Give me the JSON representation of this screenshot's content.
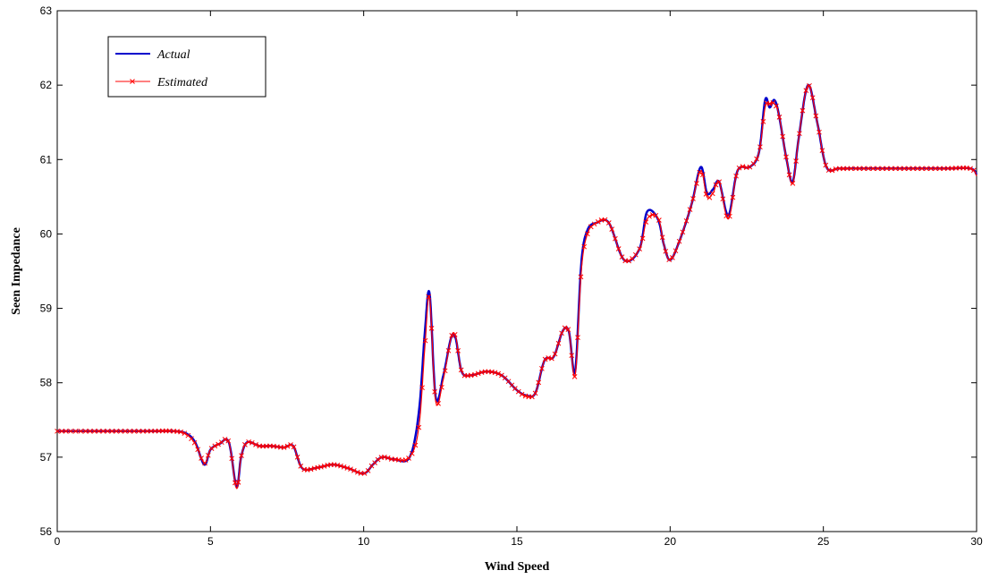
{
  "chart_data": {
    "type": "line",
    "title": "",
    "xlabel": "Wind Speed",
    "ylabel": "Seen Impedance",
    "xlim": [
      0,
      30
    ],
    "ylim": [
      56,
      63
    ],
    "xticks": [
      0,
      5,
      10,
      15,
      20,
      25,
      30
    ],
    "yticks": [
      56,
      57,
      58,
      59,
      60,
      61,
      62,
      63
    ],
    "grid": false,
    "legend_position": "top-left",
    "series": [
      {
        "name": "Actual",
        "color": "#0000cc",
        "marker": "none",
        "x": [
          0,
          1,
          2,
          3,
          3.8,
          4.2,
          4.5,
          4.8,
          5.0,
          5.3,
          5.6,
          5.85,
          6.0,
          6.2,
          6.6,
          7.0,
          7.4,
          7.7,
          8.0,
          8.5,
          9.0,
          9.5,
          10.0,
          10.3,
          10.6,
          11.0,
          11.5,
          11.8,
          12.0,
          12.15,
          12.35,
          12.6,
          12.85,
          13.0,
          13.2,
          13.5,
          14.0,
          14.5,
          15.0,
          15.3,
          15.6,
          15.9,
          16.2,
          16.5,
          16.7,
          16.9,
          17.1,
          17.3,
          17.6,
          18.0,
          18.5,
          19.0,
          19.25,
          19.6,
          19.8,
          20.0,
          20.3,
          20.7,
          21.0,
          21.2,
          21.4,
          21.6,
          21.9,
          22.2,
          22.6,
          22.9,
          23.1,
          23.25,
          23.4,
          23.55,
          23.8,
          24.0,
          24.2,
          24.5,
          24.8,
          25.1,
          25.5,
          26,
          27,
          28,
          29,
          29.8,
          30
        ],
        "y": [
          57.35,
          57.35,
          57.35,
          57.35,
          57.35,
          57.32,
          57.2,
          56.9,
          57.1,
          57.18,
          57.2,
          56.6,
          57.0,
          57.2,
          57.15,
          57.15,
          57.13,
          57.15,
          56.85,
          56.86,
          56.9,
          56.85,
          56.78,
          56.9,
          57.0,
          56.97,
          57.0,
          57.6,
          58.7,
          59.2,
          57.8,
          58.1,
          58.6,
          58.6,
          58.15,
          58.1,
          58.15,
          58.1,
          57.9,
          57.83,
          57.86,
          58.3,
          58.35,
          58.7,
          58.68,
          58.15,
          59.6,
          60.05,
          60.15,
          60.15,
          59.65,
          59.8,
          60.3,
          60.2,
          59.85,
          59.65,
          59.9,
          60.4,
          60.9,
          60.55,
          60.6,
          60.7,
          60.25,
          60.85,
          60.9,
          61.1,
          61.8,
          61.7,
          61.8,
          61.6,
          61.0,
          60.7,
          61.3,
          62.0,
          61.5,
          60.9,
          60.88,
          60.88,
          60.88,
          60.88,
          60.88,
          60.88,
          60.8
        ]
      },
      {
        "name": "Estimated",
        "color": "#ff0000",
        "marker": "x",
        "x": [
          0,
          1,
          2,
          3,
          3.8,
          4.2,
          4.5,
          4.8,
          5.0,
          5.3,
          5.6,
          5.85,
          6.0,
          6.2,
          6.6,
          7.0,
          7.4,
          7.7,
          8.0,
          8.5,
          9.0,
          9.5,
          10.0,
          10.3,
          10.6,
          11.0,
          11.5,
          11.8,
          12.0,
          12.15,
          12.35,
          12.6,
          12.85,
          13.0,
          13.2,
          13.5,
          14.0,
          14.5,
          15.0,
          15.3,
          15.6,
          15.9,
          16.2,
          16.5,
          16.7,
          16.9,
          17.1,
          17.3,
          17.6,
          18.0,
          18.5,
          19.0,
          19.25,
          19.6,
          19.8,
          20.0,
          20.3,
          20.7,
          21.0,
          21.2,
          21.4,
          21.6,
          21.9,
          22.2,
          22.6,
          22.9,
          23.1,
          23.25,
          23.4,
          23.55,
          23.8,
          24.0,
          24.2,
          24.5,
          24.8,
          25.1,
          25.5,
          26,
          27,
          28,
          29,
          29.8,
          30
        ],
        "y": [
          57.35,
          57.35,
          57.35,
          57.35,
          57.35,
          57.31,
          57.18,
          56.92,
          57.1,
          57.18,
          57.2,
          56.58,
          57.0,
          57.2,
          57.15,
          57.15,
          57.13,
          57.15,
          56.85,
          56.86,
          56.9,
          56.85,
          56.78,
          56.9,
          57.0,
          56.97,
          57.0,
          57.4,
          58.5,
          59.15,
          57.75,
          58.05,
          58.6,
          58.62,
          58.15,
          58.1,
          58.15,
          58.1,
          57.9,
          57.82,
          57.86,
          58.3,
          58.35,
          58.7,
          58.68,
          58.1,
          59.5,
          60.0,
          60.15,
          60.15,
          59.65,
          59.8,
          60.2,
          60.22,
          59.85,
          59.65,
          59.9,
          60.4,
          60.85,
          60.5,
          60.55,
          60.7,
          60.2,
          60.85,
          60.9,
          61.1,
          61.7,
          61.75,
          61.75,
          61.6,
          61.0,
          60.68,
          61.3,
          62.0,
          61.5,
          60.9,
          60.88,
          60.88,
          60.88,
          60.88,
          60.88,
          60.88,
          60.78
        ]
      }
    ]
  }
}
